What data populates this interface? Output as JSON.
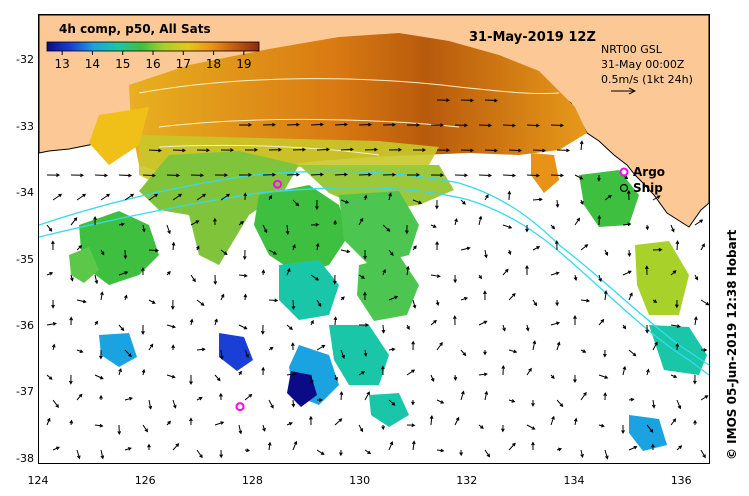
{
  "map": {
    "title_left": "4h comp, p50, All Sats",
    "title_date": "31-May-2019 12Z",
    "current_model": "NRT00 GSL",
    "current_time": "31-May 00:00Z",
    "current_scale": "0.5m/s (1kt 24h)",
    "colorbar": {
      "ticks": [
        "13",
        "14",
        "15",
        "16",
        "17",
        "18",
        "19"
      ],
      "range": [
        12.5,
        19.5
      ],
      "colors": [
        "#0b0b87",
        "#1a3fd6",
        "#1aa3e0",
        "#19c7a8",
        "#3fbf3f",
        "#a8d12a",
        "#e8c51c",
        "#e89317",
        "#c05a10",
        "#8b2a0a"
      ]
    },
    "legend": {
      "argo_label": "Argo",
      "ship_label": "Ship",
      "argo_color": "#ff00ff"
    },
    "lat_labels": [
      "-32",
      "-33",
      "-34",
      "-35",
      "-36",
      "-37",
      "-38"
    ],
    "lon_labels": [
      "124",
      "126",
      "128",
      "130",
      "132",
      "134",
      "136"
    ],
    "lat_range": [
      -38.05,
      -31.3
    ],
    "lon_range": [
      124,
      136.5
    ],
    "argo_floats": [
      {
        "lon": 128.45,
        "lat": -33.85
      },
      {
        "lon": 127.75,
        "lat": -37.2
      }
    ],
    "land_color": "#fbc896",
    "credit": "© IMOS 05-Jun-2019 12:38 Hobart"
  }
}
